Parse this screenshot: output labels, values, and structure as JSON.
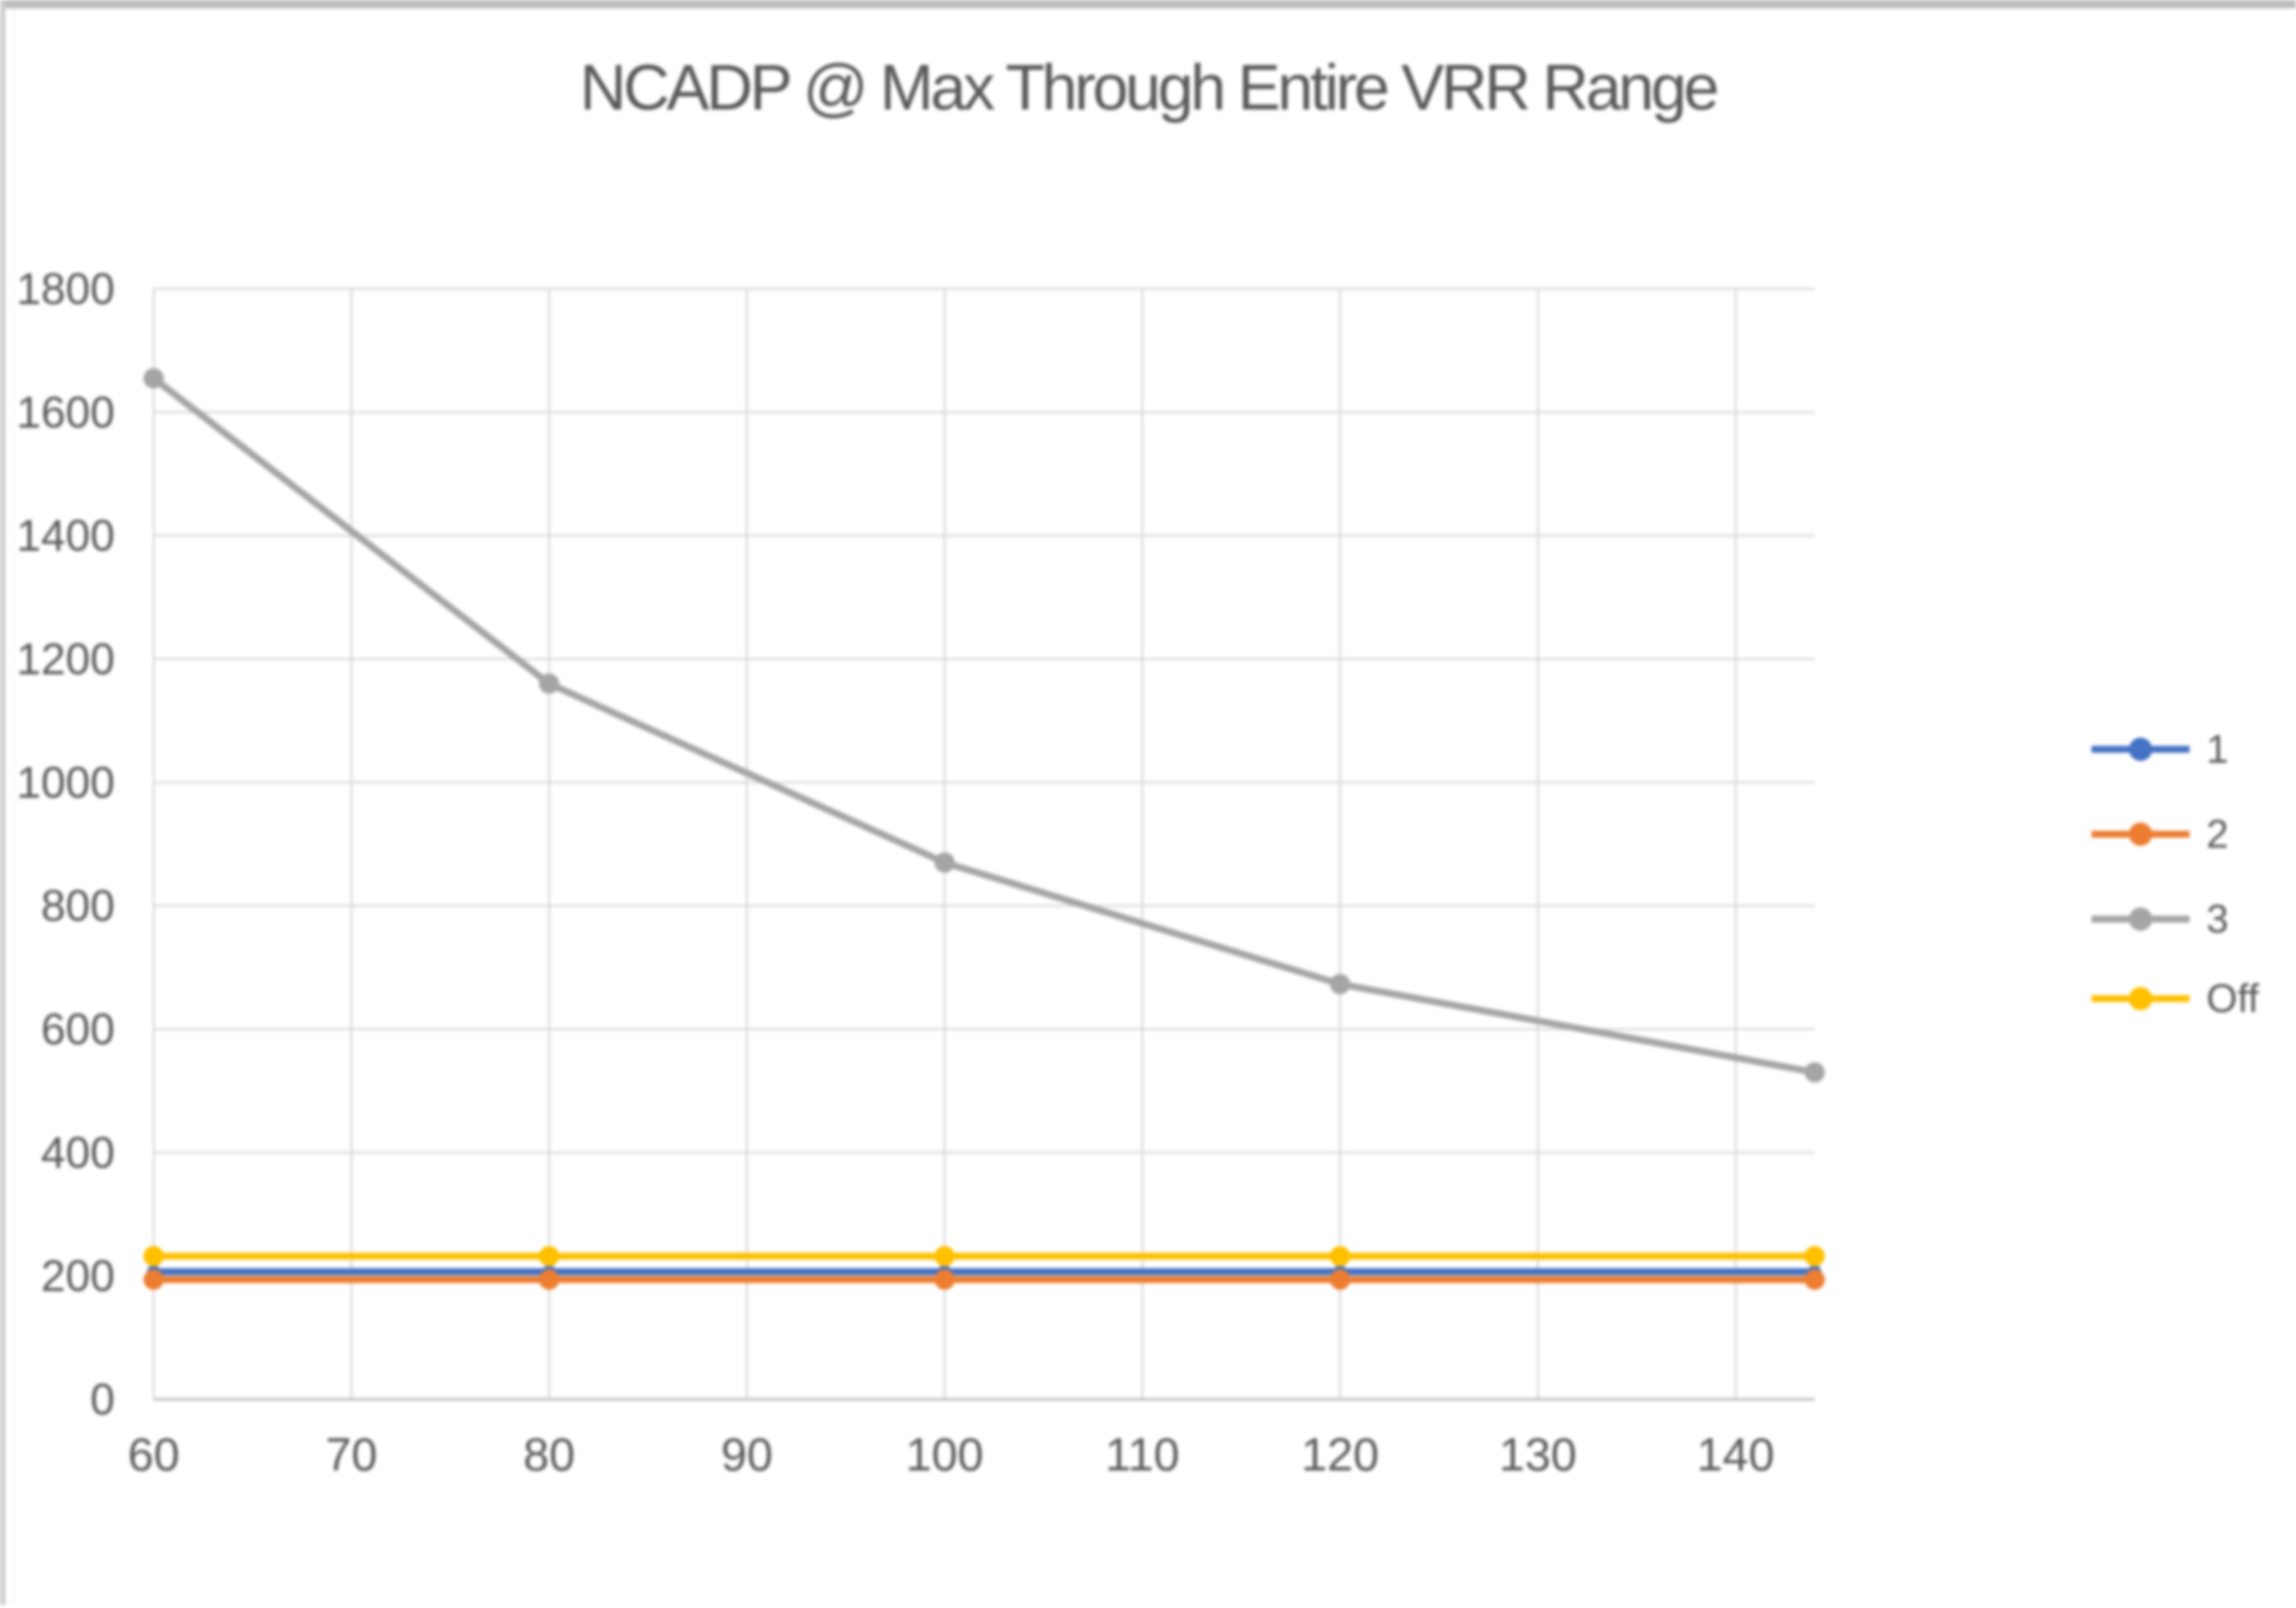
{
  "chart_data": {
    "type": "line",
    "title": "NCADP @ Max Through Entire VRR Range",
    "xlabel": "",
    "ylabel": "",
    "x": [
      60,
      80,
      100,
      120,
      144
    ],
    "series": [
      {
        "name": "1",
        "color": "#4472C4",
        "values": [
          207,
          207,
          207,
          207,
          207
        ]
      },
      {
        "name": "2",
        "color": "#ED7D31",
        "values": [
          194,
          194,
          194,
          194,
          194
        ]
      },
      {
        "name": "3",
        "color": "#A5A5A5",
        "values": [
          1655,
          1160,
          870,
          673,
          530
        ]
      },
      {
        "name": "Off",
        "color": "#FFC000",
        "values": [
          232,
          232,
          232,
          232,
          232
        ]
      }
    ],
    "xticks": [
      60,
      70,
      80,
      90,
      100,
      110,
      120,
      130,
      140
    ],
    "yticks": [
      0,
      200,
      400,
      600,
      800,
      1000,
      1200,
      1400,
      1600,
      1800
    ],
    "xlim": [
      60,
      144
    ],
    "ylim": [
      0,
      1800
    ],
    "grid": true,
    "legend_position": "right",
    "marker": "circle",
    "text_color": "#595959",
    "gridline_color": "#D9D9D9",
    "axis_line_color": "#BFBFBF",
    "page_border_top_color": "#bcbcbc",
    "page_border_left_color": "#cdcdcd"
  }
}
